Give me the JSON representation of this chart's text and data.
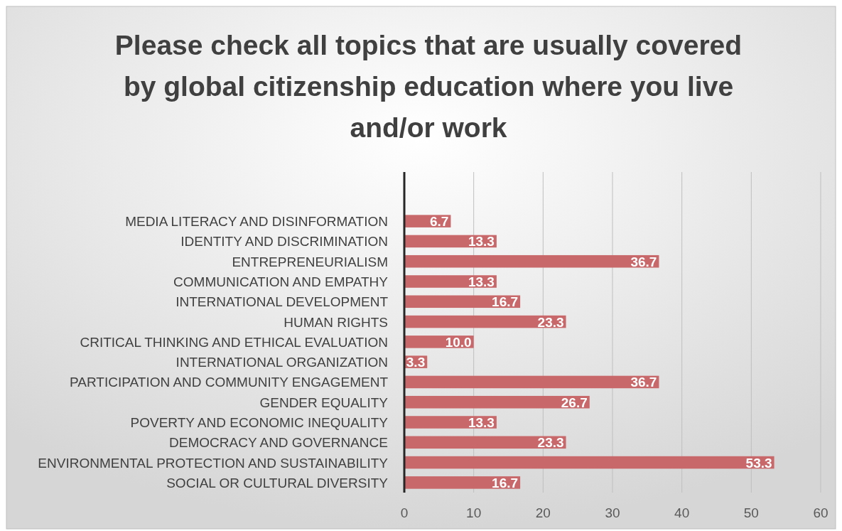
{
  "chart_data": {
    "type": "bar",
    "orientation": "horizontal",
    "title": "Please check all topics that are usually covered by global citizenship education where you live and/or work",
    "categories": [
      "MEDIA LITERACY AND DISINFORMATION",
      "IDENTITY AND DISCRIMINATION",
      "ENTREPRENEURIALISM",
      "COMMUNICATION AND EMPATHY",
      "INTERNATIONAL DEVELOPMENT",
      "HUMAN RIGHTS",
      "CRITICAL THINKING AND ETHICAL EVALUATION",
      "INTERNATIONAL ORGANIZATION",
      "PARTICIPATION AND COMMUNITY ENGAGEMENT",
      "GENDER EQUALITY",
      "POVERTY AND ECONOMIC INEQUALITY",
      "DEMOCRACY AND GOVERNANCE",
      "ENVIRONMENTAL PROTECTION AND SUSTAINABILITY",
      "SOCIAL OR CULTURAL DIVERSITY"
    ],
    "values": [
      6.7,
      13.3,
      36.7,
      13.3,
      16.7,
      23.3,
      10.0,
      3.3,
      36.7,
      26.7,
      13.3,
      23.3,
      53.3,
      16.7
    ],
    "value_labels": [
      "6.7",
      "13.3",
      "36.7",
      "13.3",
      "16.7",
      "23.3",
      "10.0",
      "3.3",
      "36.7",
      "26.7",
      "13.3",
      "23.3",
      "53.3",
      "16.7"
    ],
    "color": "#c9686a",
    "xlim": [
      0,
      60
    ],
    "xticks": [
      0,
      10,
      20,
      30,
      40,
      50,
      60
    ],
    "grid": "x"
  }
}
